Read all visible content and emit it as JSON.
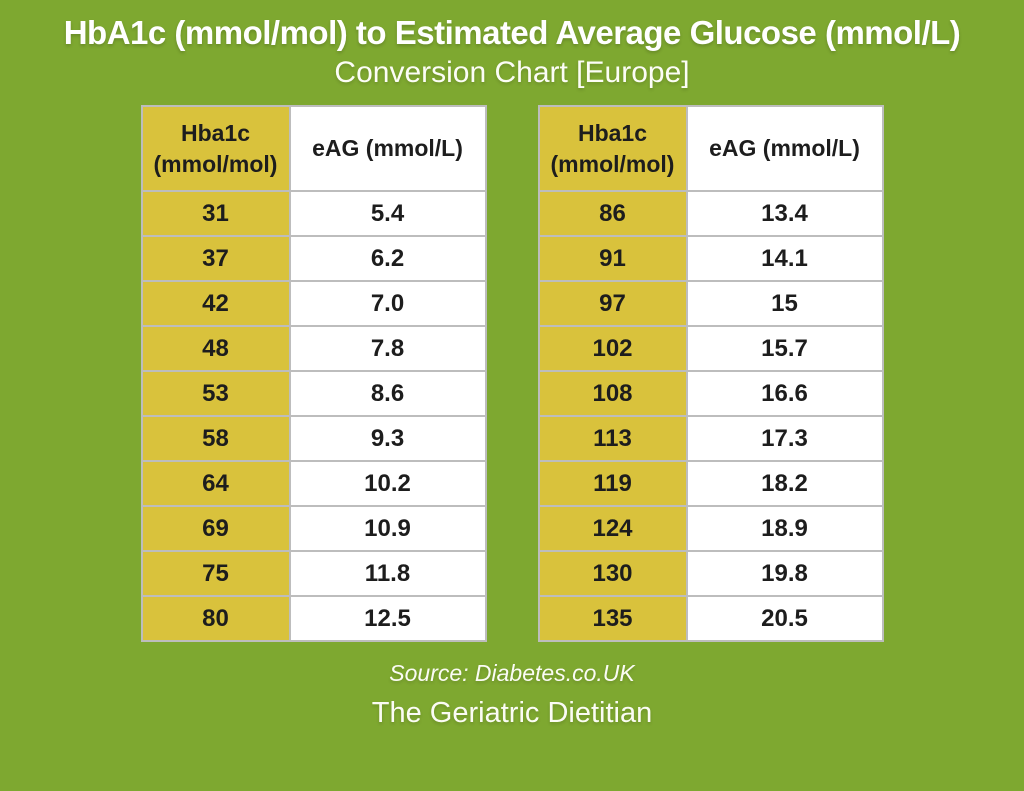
{
  "header": {
    "title": "HbA1c (mmol/mol) to Estimated Average Glucose (mmol/L)",
    "subtitle": "Conversion Chart [Europe]"
  },
  "tables": [
    {
      "col1_header_line1": "Hba1c",
      "col1_header_line2": "(mmol/mol)",
      "col2_header": "eAG (mmol/L)",
      "rows": [
        {
          "hba1c": "31",
          "eag": "5.4"
        },
        {
          "hba1c": "37",
          "eag": "6.2"
        },
        {
          "hba1c": "42",
          "eag": "7.0"
        },
        {
          "hba1c": "48",
          "eag": "7.8"
        },
        {
          "hba1c": "53",
          "eag": "8.6"
        },
        {
          "hba1c": "58",
          "eag": "9.3"
        },
        {
          "hba1c": "64",
          "eag": "10.2"
        },
        {
          "hba1c": "69",
          "eag": "10.9"
        },
        {
          "hba1c": "75",
          "eag": "11.8"
        },
        {
          "hba1c": "80",
          "eag": "12.5"
        }
      ]
    },
    {
      "col1_header_line1": "Hba1c",
      "col1_header_line2": "(mmol/mol)",
      "col2_header": "eAG (mmol/L)",
      "rows": [
        {
          "hba1c": "86",
          "eag": "13.4"
        },
        {
          "hba1c": "91",
          "eag": "14.1"
        },
        {
          "hba1c": "97",
          "eag": "15"
        },
        {
          "hba1c": "102",
          "eag": "15.7"
        },
        {
          "hba1c": "108",
          "eag": "16.6"
        },
        {
          "hba1c": "113",
          "eag": "17.3"
        },
        {
          "hba1c": "119",
          "eag": "18.2"
        },
        {
          "hba1c": "124",
          "eag": "18.9"
        },
        {
          "hba1c": "130",
          "eag": "19.8"
        },
        {
          "hba1c": "135",
          "eag": "20.5"
        }
      ]
    }
  ],
  "footer": {
    "source": "Source: Diabetes.co.UK",
    "brand": "The Geriatric Dietitian"
  },
  "colors": {
    "background_green": "#7EA830",
    "hba1c_column_yellow": "#D9C23C",
    "eag_column_white": "#FFFFFF",
    "grid_border_gray": "#BDBDBD",
    "cell_text": "#1D1D1D",
    "heading_text": "#FFFFFF"
  },
  "chart_data": {
    "type": "table",
    "title": "HbA1c (mmol/mol) to Estimated Average Glucose (mmol/L) Conversion Chart [Europe]",
    "columns": [
      "Hba1c (mmol/mol)",
      "eAG (mmol/L)"
    ],
    "rows": [
      [
        31,
        5.4
      ],
      [
        37,
        6.2
      ],
      [
        42,
        7.0
      ],
      [
        48,
        7.8
      ],
      [
        53,
        8.6
      ],
      [
        58,
        9.3
      ],
      [
        64,
        10.2
      ],
      [
        69,
        10.9
      ],
      [
        75,
        11.8
      ],
      [
        80,
        12.5
      ],
      [
        86,
        13.4
      ],
      [
        91,
        14.1
      ],
      [
        97,
        15
      ],
      [
        102,
        15.7
      ],
      [
        108,
        16.6
      ],
      [
        113,
        17.3
      ],
      [
        119,
        18.2
      ],
      [
        124,
        18.9
      ],
      [
        130,
        19.8
      ],
      [
        135,
        20.5
      ]
    ],
    "source": "Diabetes.co.UK"
  }
}
